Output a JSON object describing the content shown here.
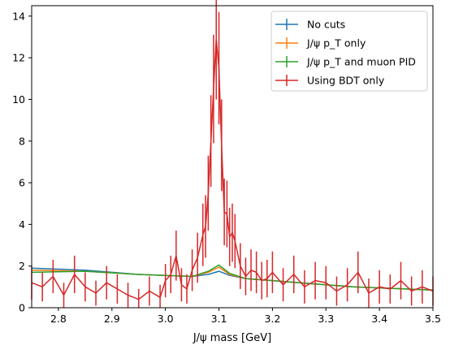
{
  "chart_data": {
    "type": "line",
    "xlabel": "J/ψ mass [GeV]",
    "ylabel": "",
    "xlim": [
      2.75,
      3.5
    ],
    "ylim": [
      0,
      14.5
    ],
    "xticks": [
      "2.8",
      "2.9",
      "3.0",
      "3.1",
      "3.2",
      "3.3",
      "3.4",
      "3.5"
    ],
    "yticks": [
      "0",
      "2",
      "4",
      "6",
      "8",
      "10",
      "12",
      "14"
    ],
    "legend_position": "top-right",
    "grid": false,
    "series": [
      {
        "name": "No cuts",
        "color": "#1f77b4",
        "x": [
          2.75,
          2.85,
          2.95,
          3.0,
          3.05,
          3.08,
          3.1,
          3.12,
          3.15,
          3.2,
          3.25,
          3.3,
          3.35,
          3.4,
          3.45,
          3.5
        ],
        "y": [
          1.9,
          1.8,
          1.6,
          1.55,
          1.5,
          1.6,
          1.75,
          1.55,
          1.4,
          1.3,
          1.2,
          1.1,
          1.0,
          0.95,
          0.9,
          0.85
        ]
      },
      {
        "name": "J/ψ p_T only",
        "color": "#ff7f0e",
        "x": [
          2.75,
          2.85,
          2.95,
          3.0,
          3.05,
          3.08,
          3.1,
          3.12,
          3.15,
          3.2,
          3.25,
          3.3,
          3.35,
          3.4,
          3.45,
          3.5
        ],
        "y": [
          1.8,
          1.75,
          1.6,
          1.55,
          1.5,
          1.7,
          1.95,
          1.6,
          1.4,
          1.3,
          1.2,
          1.1,
          1.0,
          0.95,
          0.9,
          0.85
        ]
      },
      {
        "name": "J/ψ p_T and muon PID",
        "color": "#2ca02c",
        "x": [
          2.75,
          2.85,
          2.95,
          3.0,
          3.05,
          3.08,
          3.1,
          3.12,
          3.15,
          3.2,
          3.25,
          3.3,
          3.35,
          3.4,
          3.45,
          3.5
        ],
        "y": [
          1.7,
          1.75,
          1.6,
          1.55,
          1.5,
          1.75,
          2.05,
          1.65,
          1.4,
          1.3,
          1.2,
          1.1,
          1.0,
          0.95,
          0.9,
          0.85
        ]
      },
      {
        "name": "Using BDT only",
        "color": "#d62728",
        "x": [
          2.75,
          2.77,
          2.79,
          2.81,
          2.83,
          2.85,
          2.87,
          2.89,
          2.91,
          2.93,
          2.95,
          2.97,
          2.99,
          3.0,
          3.01,
          3.02,
          3.03,
          3.04,
          3.05,
          3.06,
          3.07,
          3.075,
          3.08,
          3.085,
          3.09,
          3.095,
          3.1,
          3.105,
          3.11,
          3.115,
          3.12,
          3.125,
          3.13,
          3.14,
          3.15,
          3.16,
          3.17,
          3.18,
          3.19,
          3.2,
          3.22,
          3.24,
          3.26,
          3.28,
          3.3,
          3.32,
          3.34,
          3.36,
          3.38,
          3.4,
          3.42,
          3.44,
          3.46,
          3.48,
          3.5
        ],
        "y": [
          1.2,
          1.0,
          1.5,
          0.6,
          1.6,
          1.0,
          0.7,
          1.2,
          0.9,
          0.6,
          0.4,
          0.8,
          0.5,
          1.3,
          1.6,
          2.5,
          1.1,
          0.9,
          1.8,
          2.4,
          3.5,
          3.9,
          5.5,
          8.0,
          10.5,
          12.9,
          11.5,
          7.8,
          4.6,
          4.5,
          3.4,
          3.6,
          3.2,
          2.0,
          1.5,
          1.8,
          1.7,
          1.3,
          1.4,
          1.7,
          1.1,
          1.6,
          1.0,
          1.3,
          1.2,
          0.8,
          1.1,
          1.7,
          0.7,
          1.0,
          0.9,
          1.3,
          0.8,
          1.0,
          0.8
        ],
        "err": [
          0.8,
          0.7,
          0.8,
          0.6,
          0.9,
          0.7,
          0.6,
          0.8,
          0.7,
          0.6,
          0.5,
          0.7,
          0.6,
          0.8,
          0.9,
          1.2,
          0.8,
          0.7,
          1.0,
          1.2,
          1.5,
          1.5,
          1.8,
          2.2,
          2.6,
          2.9,
          2.7,
          2.2,
          1.6,
          1.6,
          1.4,
          1.4,
          1.3,
          1.1,
          0.9,
          1.0,
          1.0,
          0.9,
          0.9,
          1.0,
          0.8,
          0.9,
          0.8,
          0.9,
          0.8,
          0.7,
          0.8,
          1.0,
          0.7,
          0.8,
          0.7,
          0.9,
          0.7,
          0.8,
          0.7
        ]
      }
    ]
  }
}
